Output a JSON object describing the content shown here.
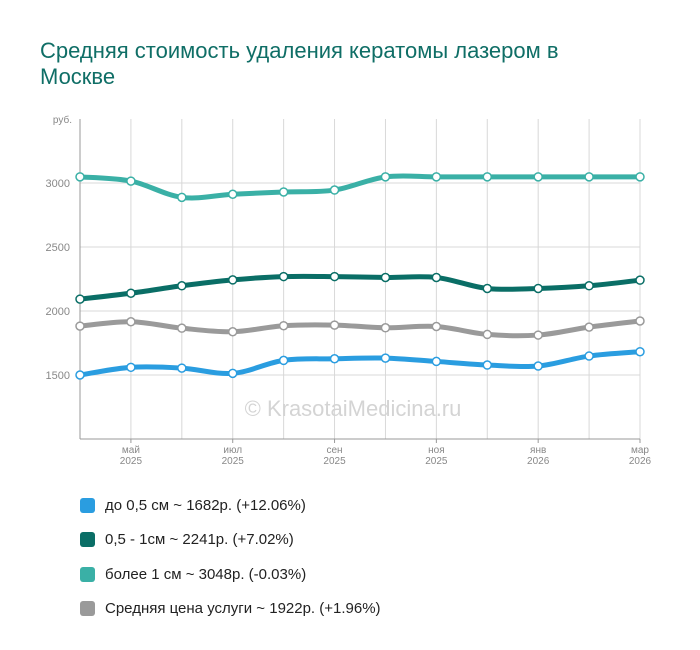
{
  "chart_data": {
    "type": "line",
    "title": "Средняя стоимость удаления кератомы лазером в Москве",
    "ylabel": "руб.",
    "ylim": [
      1000,
      3500
    ],
    "yticks": [
      1500,
      2000,
      2500,
      3000
    ],
    "x": [
      "2025-04",
      "2025-05",
      "2025-06",
      "2025-07",
      "2025-08",
      "2025-09",
      "2025-10",
      "2025-11",
      "2025-12",
      "2026-01",
      "2026-02",
      "2026-03"
    ],
    "xtick_labels": [
      {
        "index": 1,
        "month": "май",
        "year": "2025"
      },
      {
        "index": 3,
        "month": "июл",
        "year": "2025"
      },
      {
        "index": 5,
        "month": "сен",
        "year": "2025"
      },
      {
        "index": 7,
        "month": "ноя",
        "year": "2025"
      },
      {
        "index": 9,
        "month": "янв",
        "year": "2026"
      },
      {
        "index": 11,
        "month": "мар",
        "year": "2026"
      }
    ],
    "grid": true,
    "watermark": "© KrasotaiMedicina.ru",
    "legend_position": "bottom",
    "series": [
      {
        "name": "до 0,5 см ~ 1682р. (+12.06%)",
        "color": "#2a9de0",
        "values": [
          1500,
          1560,
          1554,
          1513,
          1614,
          1627,
          1632,
          1606,
          1578,
          1570,
          1648,
          1682
        ]
      },
      {
        "name": "0,5 - 1см ~ 2241р. (+7.02%)",
        "color": "#0a6e66",
        "values": [
          2093,
          2139,
          2197,
          2243,
          2269,
          2269,
          2262,
          2262,
          2176,
          2176,
          2197,
          2241
        ]
      },
      {
        "name": "более 1 см ~ 3048р. (-0.03%)",
        "color": "#3ab0a6",
        "values": [
          3048,
          3015,
          2888,
          2912,
          2930,
          2945,
          3048,
          3048,
          3048,
          3048,
          3048,
          3048
        ]
      },
      {
        "name": "Средняя цена услуги ~ 1922р. (+1.96%)",
        "color": "#9a9a9a",
        "values": [
          1882,
          1916,
          1866,
          1838,
          1885,
          1890,
          1869,
          1879,
          1817,
          1812,
          1874,
          1922
        ]
      }
    ]
  }
}
